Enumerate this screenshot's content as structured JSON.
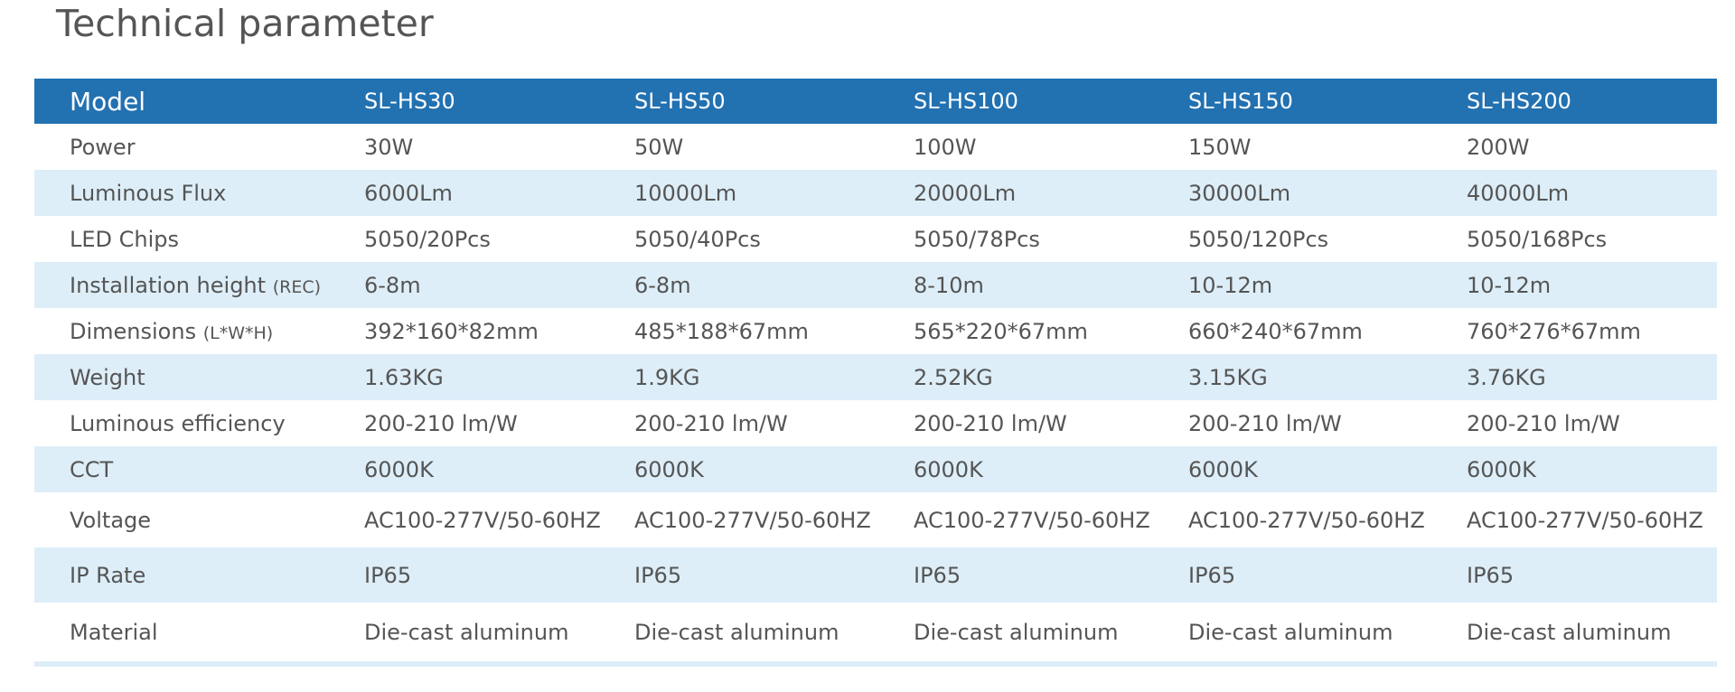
{
  "title": "Technical parameter",
  "table": {
    "header": [
      "Model",
      "SL-HS30",
      "SL-HS50",
      "SL-HS100",
      "SL-HS150",
      "SL-HS200"
    ],
    "rows": [
      {
        "label": "Power",
        "cells": [
          "30W",
          "50W",
          "100W",
          "150W",
          "200W"
        ]
      },
      {
        "label": "Luminous Flux",
        "cells": [
          "6000Lm",
          "10000Lm",
          "20000Lm",
          "30000Lm",
          "40000Lm"
        ]
      },
      {
        "label": "LED Chips",
        "cells": [
          "5050/20Pcs",
          "5050/40Pcs",
          "5050/78Pcs",
          "5050/120Pcs",
          "5050/168Pcs"
        ]
      },
      {
        "label": "Installation height",
        "note": "(REC)",
        "cells": [
          "6-8m",
          "6-8m",
          "8-10m",
          "10-12m",
          "10-12m"
        ]
      },
      {
        "label": "Dimensions",
        "note": "(L*W*H)",
        "cells": [
          "392*160*82mm",
          "485*188*67mm",
          "565*220*67mm",
          "660*240*67mm",
          "760*276*67mm"
        ]
      },
      {
        "label": "Weight",
        "cells": [
          "1.63KG",
          "1.9KG",
          "2.52KG",
          "3.15KG",
          "3.76KG"
        ]
      },
      {
        "label": "Luminous efficiency",
        "cells": [
          "200-210 lm/W",
          "200-210 lm/W",
          "200-210 lm/W",
          "200-210 lm/W",
          "200-210 lm/W"
        ]
      },
      {
        "label": "CCT",
        "cells": [
          "6000K",
          "6000K",
          "6000K",
          "6000K",
          "6000K"
        ]
      },
      {
        "label": "Voltage",
        "cells": [
          "AC100-277V/50-60HZ",
          "AC100-277V/50-60HZ",
          "AC100-277V/50-60HZ",
          "AC100-277V/50-60HZ",
          "AC100-277V/50-60HZ"
        ]
      },
      {
        "label": "IP Rate",
        "cells": [
          "IP65",
          "IP65",
          "IP65",
          "IP65",
          "IP65"
        ]
      },
      {
        "label": "Material",
        "cells": [
          "Die-cast aluminum",
          "Die-cast aluminum",
          "Die-cast aluminum",
          "Die-cast aluminum",
          "Die-cast aluminum"
        ]
      }
    ]
  }
}
